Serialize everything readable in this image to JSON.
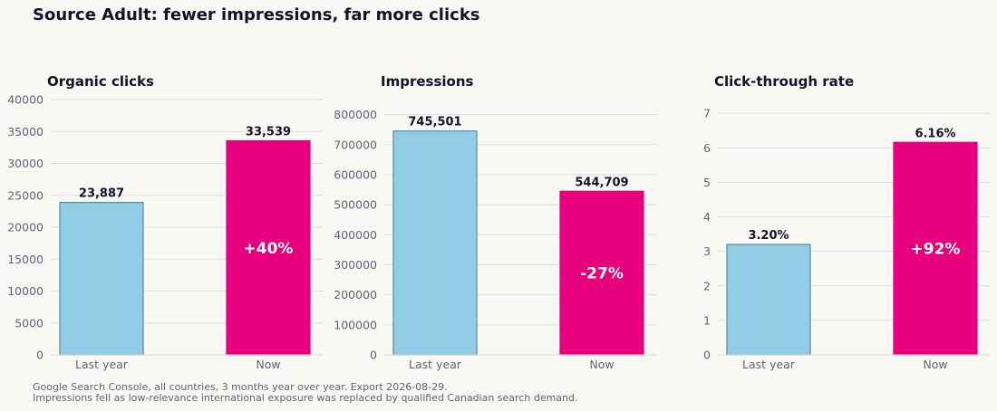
{
  "title": "Source Adult: fewer impressions, far more clicks",
  "footnotes": [
    "Google Search Console, all countries, 3 months year over year. Export 2026-08-29.",
    "Impressions fell as low-relevance international exposure was replaced by qualified Canadian search demand."
  ],
  "colors": {
    "last_year": "#92cce5",
    "last_year_edge": "#4f8fa8",
    "now": "#e6007e",
    "grid": "#dcdcdc",
    "title_text": "#12142a",
    "tick_text": "#5f6470"
  },
  "chart_data": [
    {
      "type": "bar",
      "title": "Organic clicks",
      "categories": [
        "Last year",
        "Now"
      ],
      "values": [
        23887,
        33539
      ],
      "value_labels": [
        "23,887",
        "33,539"
      ],
      "change_label": "+40%",
      "ylim": [
        0,
        40000
      ],
      "yticks": [
        0,
        5000,
        10000,
        15000,
        20000,
        25000,
        30000,
        35000,
        40000
      ],
      "grid": true
    },
    {
      "type": "bar",
      "title": "Impressions",
      "categories": [
        "Last year",
        "Now"
      ],
      "values": [
        745501,
        544709
      ],
      "value_labels": [
        "745,501",
        "544,709"
      ],
      "change_label": "-27%",
      "ylim": [
        0,
        850000
      ],
      "yticks": [
        0,
        100000,
        200000,
        300000,
        400000,
        500000,
        600000,
        700000,
        800000
      ],
      "grid": true
    },
    {
      "type": "bar",
      "title": "Click-through rate",
      "categories": [
        "Last year",
        "Now"
      ],
      "values": [
        3.2,
        6.16
      ],
      "value_labels": [
        "3.20%",
        "6.16%"
      ],
      "change_label": "+92%",
      "ylim": [
        0,
        7.4
      ],
      "yticks": [
        0,
        1,
        2,
        3,
        4,
        5,
        6,
        7
      ],
      "grid": true
    }
  ]
}
